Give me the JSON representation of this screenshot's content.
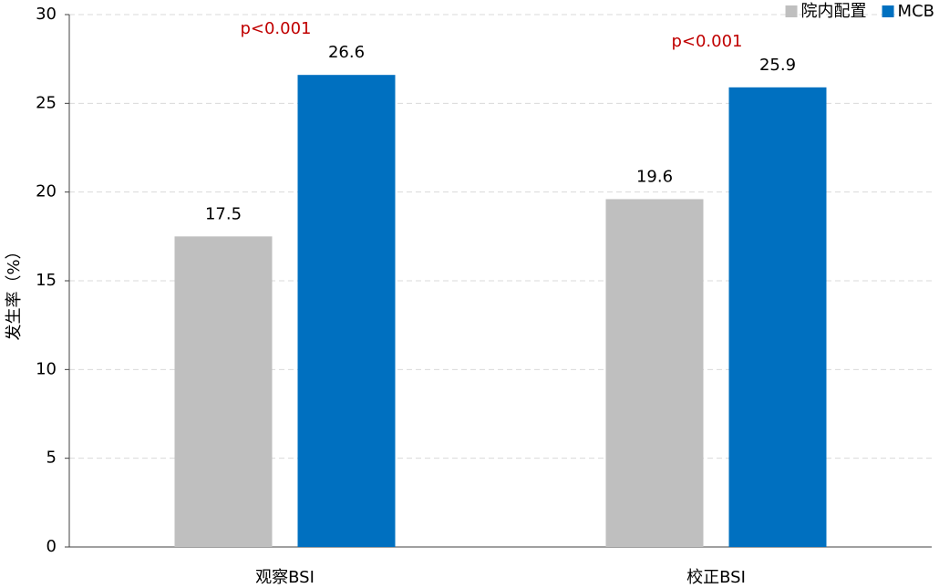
{
  "chart_data": {
    "type": "grouped-bar",
    "categories": [
      "观察BSI",
      "校正BSI"
    ],
    "series": [
      {
        "name": "院内配置",
        "color": "#bfbfbf",
        "values": [
          17.5,
          19.6
        ]
      },
      {
        "name": "MCB",
        "color": "#0070c0",
        "values": [
          26.6,
          25.9
        ]
      }
    ],
    "annotations": [
      "p<0.001",
      "p<0.001"
    ],
    "annotation_color": "#c00000",
    "y_label": "发生率（%）",
    "ylim": [
      0,
      30
    ],
    "yticks": [
      0,
      5,
      10,
      15,
      20,
      25,
      30
    ],
    "grid": true,
    "legend": "top-right"
  }
}
